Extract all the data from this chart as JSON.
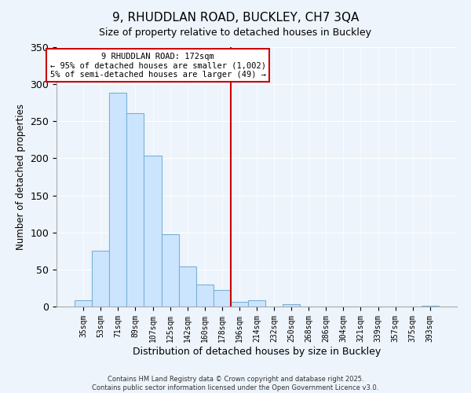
{
  "title": "9, RHUDDLAN ROAD, BUCKLEY, CH7 3QA",
  "subtitle": "Size of property relative to detached houses in Buckley",
  "xlabel": "Distribution of detached houses by size in Buckley",
  "ylabel": "Number of detached properties",
  "bar_labels": [
    "35sqm",
    "53sqm",
    "71sqm",
    "89sqm",
    "107sqm",
    "125sqm",
    "142sqm",
    "160sqm",
    "178sqm",
    "196sqm",
    "214sqm",
    "232sqm",
    "250sqm",
    "268sqm",
    "286sqm",
    "304sqm",
    "321sqm",
    "339sqm",
    "357sqm",
    "375sqm",
    "393sqm"
  ],
  "bar_values": [
    9,
    75,
    288,
    261,
    204,
    98,
    54,
    30,
    22,
    6,
    8,
    0,
    3,
    0,
    0,
    0,
    0,
    0,
    0,
    0,
    1
  ],
  "bar_color": "#cce5ff",
  "bar_edge_color": "#7ab0d4",
  "ylim": [
    0,
    350
  ],
  "yticks": [
    0,
    50,
    100,
    150,
    200,
    250,
    300,
    350
  ],
  "vline_x": 8.5,
  "vline_color": "#cc0000",
  "annotation_title": "9 RHUDDLAN ROAD: 172sqm",
  "annotation_line1": "← 95% of detached houses are smaller (1,002)",
  "annotation_line2": "5% of semi-detached houses are larger (49) →",
  "footnote1": "Contains HM Land Registry data © Crown copyright and database right 2025.",
  "footnote2": "Contains public sector information licensed under the Open Government Licence v3.0.",
  "title_fontsize": 11,
  "subtitle_fontsize": 9,
  "bg_color": "#eef4fb"
}
